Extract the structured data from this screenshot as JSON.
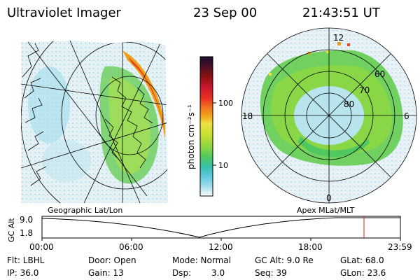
{
  "header": {
    "instrument": "Ultraviolet Imager",
    "date": "23 Sep 00",
    "time": "21:43:51 UT"
  },
  "left_panel": {
    "label": "Geographic Lat/Lon"
  },
  "right_panel": {
    "label": "Apex MLat/MLT",
    "mlt_labels": [
      "12",
      "18",
      "6",
      "0"
    ],
    "lat_labels": [
      "60",
      "70",
      "80"
    ]
  },
  "colorbar": {
    "unit": "photon cm⁻²s⁻¹",
    "tick_labels": [
      "100",
      "10"
    ],
    "scale": "log",
    "stops": [
      "#1a0a2e",
      "#7a1010",
      "#c81830",
      "#e83020",
      "#f07020",
      "#f0a018",
      "#f0e040",
      "#c8e030",
      "#90d840",
      "#50c860",
      "#38c0a8",
      "#60c8e0",
      "#a0dcec",
      "#d8eef4",
      "#ffffff"
    ]
  },
  "timeline": {
    "ylabel": "GC Alt",
    "yticks": [
      "9.0",
      "1.8"
    ],
    "xticks": [
      "00:00",
      "06:00",
      "12:00",
      "18:00",
      "23:59"
    ],
    "marker_color": "#d02020"
  },
  "info": {
    "row1": {
      "filter": "Flt: LBHL",
      "door": "Door: Open",
      "mode": "Mode: Normal",
      "gcalt": "GC Alt: 9.0 Re",
      "glat": "GLat:  68.0"
    },
    "row2": {
      "ip": "IP: 36.0",
      "gain": "Gain: 13",
      "dsp_label": "Dsp:",
      "dsp_value": "3.0",
      "seq": "Seq: 39",
      "glon": "GLon:  23.6"
    }
  }
}
